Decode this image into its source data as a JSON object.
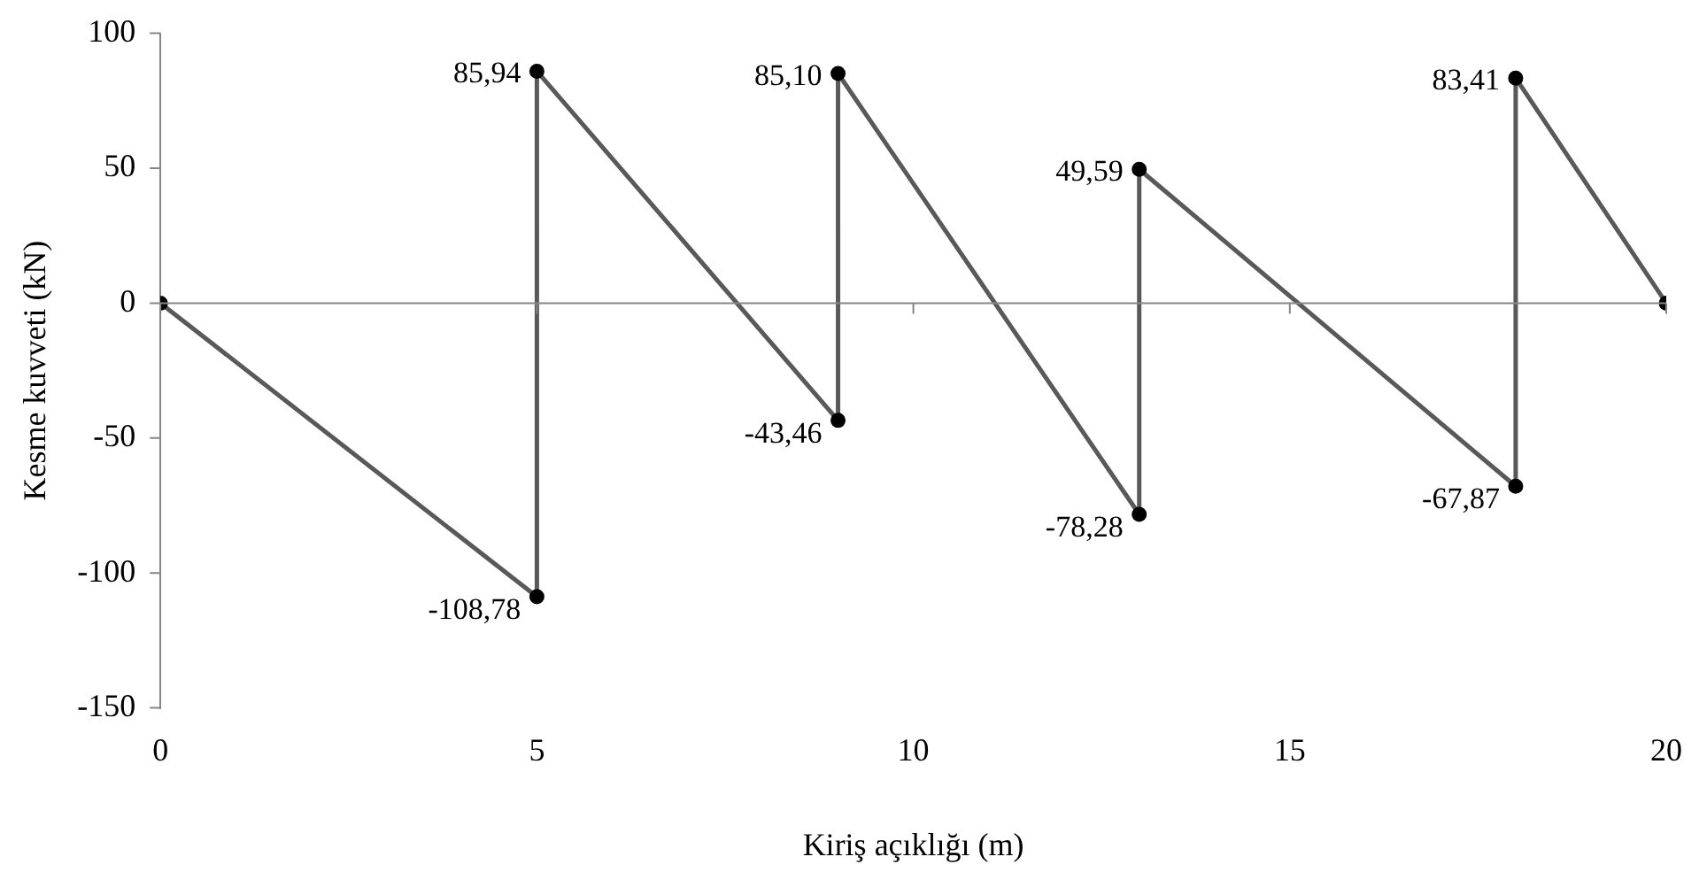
{
  "chart_data": {
    "type": "line",
    "xlabel": "Kiriş açıklığı (m)",
    "ylabel": "Kesme kuvveti (kN)",
    "x": [
      0,
      5,
      5,
      9,
      9,
      13,
      13,
      18,
      18,
      20
    ],
    "series": [
      {
        "color": "#595959",
        "values": [
          0,
          -108.78,
          85.94,
          -43.46,
          85.1,
          -78.28,
          49.59,
          -67.87,
          83.41,
          0
        ],
        "value_labels": [
          null,
          "-108,78",
          "85,94",
          "-43,46",
          "85,10",
          "-78,28",
          "49,59",
          "-67,87",
          "83,41",
          null
        ]
      }
    ],
    "xlim": [
      0,
      20
    ],
    "xticks": [
      0,
      5,
      10,
      15,
      20
    ],
    "ylim": [
      -150,
      100
    ],
    "yticks": [
      -150,
      -100,
      -50,
      0,
      50,
      100
    ],
    "ref_lines": [
      {
        "axis": "y",
        "value": 0,
        "color": "#868686"
      }
    ],
    "grid": false,
    "legend": false,
    "marker": "circle",
    "line_style": "solid"
  }
}
